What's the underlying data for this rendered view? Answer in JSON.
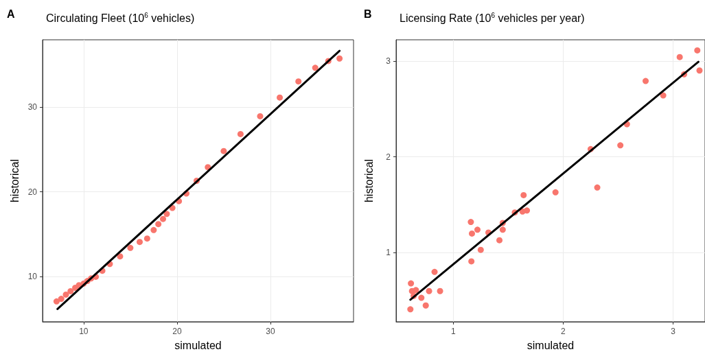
{
  "chart_data": [
    {
      "type": "scatter",
      "title": "Circulating Fleet (10$^{6}$ vehicles)",
      "xlabel": "simulated",
      "ylabel": "historical",
      "annotations": [
        "A"
      ],
      "grid": true,
      "marker": "circle",
      "xlim": [
        5.6,
        38.9
      ],
      "ylim": [
        4.7,
        37.9
      ],
      "xticks": [
        10,
        20,
        30
      ],
      "yticks": [
        10,
        20,
        30
      ],
      "series": [
        {
          "color": "#f8766d",
          "x": [
            7.1,
            7.6,
            8.1,
            8.6,
            9.1,
            9.5,
            10.0,
            10.4,
            10.8,
            11.3,
            12.0,
            12.8,
            13.9,
            15.0,
            16.0,
            16.8,
            17.5,
            18.0,
            18.5,
            18.9,
            19.5,
            20.2,
            21.0,
            22.1,
            23.3,
            25.0,
            26.8,
            28.9,
            31.0,
            33.0,
            34.8,
            36.2,
            37.4
          ],
          "values": [
            7.1,
            7.4,
            7.9,
            8.3,
            8.7,
            9.0,
            9.2,
            9.5,
            9.8,
            10.0,
            10.7,
            11.5,
            12.4,
            13.4,
            14.1,
            14.5,
            15.5,
            16.2,
            16.8,
            17.4,
            18.1,
            18.9,
            19.8,
            21.3,
            22.9,
            24.8,
            26.8,
            28.9,
            31.1,
            33.0,
            34.6,
            35.4,
            35.7
          ]
        },
        {
          "type": "line",
          "color": "#000000",
          "line_style": "solid",
          "marker": "none",
          "x": [
            7.2,
            37.4
          ],
          "values": [
            6.2,
            36.6
          ]
        }
      ]
    },
    {
      "type": "scatter",
      "title": "Licensing Rate (10$^{6}$ vehicles per year)",
      "xlabel": "simulated",
      "ylabel": "historical",
      "annotations": [
        "B"
      ],
      "grid": true,
      "marker": "circle",
      "xlim": [
        0.48,
        3.29
      ],
      "ylim": [
        0.28,
        3.22
      ],
      "xticks": [
        1,
        2,
        3
      ],
      "yticks": [
        1,
        2,
        3
      ],
      "series": [
        {
          "color": "#f8766d",
          "x": [
            0.61,
            0.615,
            0.625,
            0.66,
            0.64,
            0.71,
            0.75,
            0.78,
            0.83,
            0.88,
            1.16,
            1.17,
            1.165,
            1.22,
            1.25,
            1.32,
            1.42,
            1.45,
            1.45,
            1.56,
            1.63,
            1.67,
            1.64,
            1.93,
            2.31,
            2.25,
            2.52,
            2.58,
            2.75,
            2.91,
            3.06,
            3.1,
            3.22,
            3.24
          ],
          "values": [
            0.41,
            0.68,
            0.6,
            0.61,
            0.55,
            0.53,
            0.45,
            0.6,
            0.8,
            0.6,
            1.32,
            1.2,
            0.91,
            1.24,
            1.03,
            1.21,
            1.13,
            1.31,
            1.24,
            1.42,
            1.43,
            1.44,
            1.6,
            1.63,
            1.68,
            2.08,
            2.12,
            2.34,
            2.79,
            2.64,
            3.04,
            2.86,
            3.11,
            2.9
          ]
        },
        {
          "type": "line",
          "color": "#000000",
          "line_style": "solid",
          "marker": "none",
          "x": [
            0.61,
            3.23
          ],
          "values": [
            0.51,
            2.99
          ]
        }
      ]
    }
  ]
}
